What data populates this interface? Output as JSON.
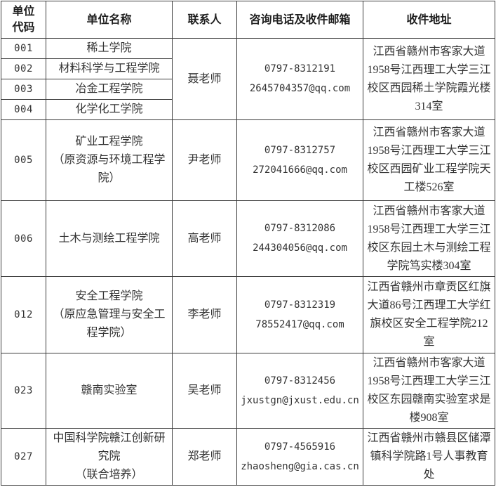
{
  "header": {
    "col_code": "单位\n代码",
    "col_name": "单位名称",
    "col_contact": "联系人",
    "col_phone_email": "咨询电话及收件邮箱",
    "col_address": "收件地址"
  },
  "groups": [
    {
      "rows": [
        {
          "code": "001",
          "name": "稀土学院"
        },
        {
          "code": "002",
          "name": "材料科学与工程学院"
        },
        {
          "code": "003",
          "name": "冶金工程学院"
        },
        {
          "code": "004",
          "name": "化学化工学院"
        }
      ],
      "contact": "聂老师",
      "phone": "0797-8312191",
      "email": "2645704357@qq.com",
      "address": "江西省赣州市客家大道\n1958号江西理工大学三江\n校区西园稀土学院霞光楼\n314室"
    },
    {
      "rows": [
        {
          "code": "005",
          "name": "矿业工程学院\n（原资源与环境工程学\n院）"
        }
      ],
      "contact": "尹老师",
      "phone": "0797-8312757",
      "email": "272041666@qq.com",
      "address": "江西省赣州市客家大道\n1958号江西理工大学三江\n校区西园矿业工程学院天\n工楼526室"
    },
    {
      "rows": [
        {
          "code": "006",
          "name": "土木与测绘工程学院"
        }
      ],
      "contact": "高老师",
      "phone": "0797-8312086",
      "email": "244304056@qq.com",
      "address": "江西省赣州市客家大道\n1958号江西理工大学三江\n校区东园土木与测绘工程\n学院笃实楼304室"
    },
    {
      "rows": [
        {
          "code": "012",
          "name": "安全工程学院\n（原应急管理与安全工\n程学院）"
        }
      ],
      "contact": "李老师",
      "phone": "0797-8312319",
      "email": "78552417@qq.com",
      "address": "江西省赣州市章贡区红旗\n大道86号江西理工大学红\n旗校区安全工程学院212\n室"
    },
    {
      "rows": [
        {
          "code": "023",
          "name": "赣南实验室"
        }
      ],
      "contact": "吴老师",
      "phone": "0797-8312456",
      "email": "jxustgn@jxust.edu.cn",
      "address": "江西省赣州市客家大道\n1958号江西理工大学三江\n校区东园赣南实验室求是\n楼908室"
    },
    {
      "rows": [
        {
          "code": "027",
          "name": "中国科学院赣江创新研\n究院\n（联合培养）"
        }
      ],
      "contact": "郑老师",
      "phone": "0797-4565916",
      "email": "zhaosheng@gia.cas.cn",
      "address": "江西省赣州市赣县区储潭\n镇科学院路1号人事教育\n处"
    }
  ],
  "colors": {
    "border": "#3c3c3c",
    "text": "#333333",
    "header_text": "#1e1e1e",
    "background": "#ffffff"
  }
}
